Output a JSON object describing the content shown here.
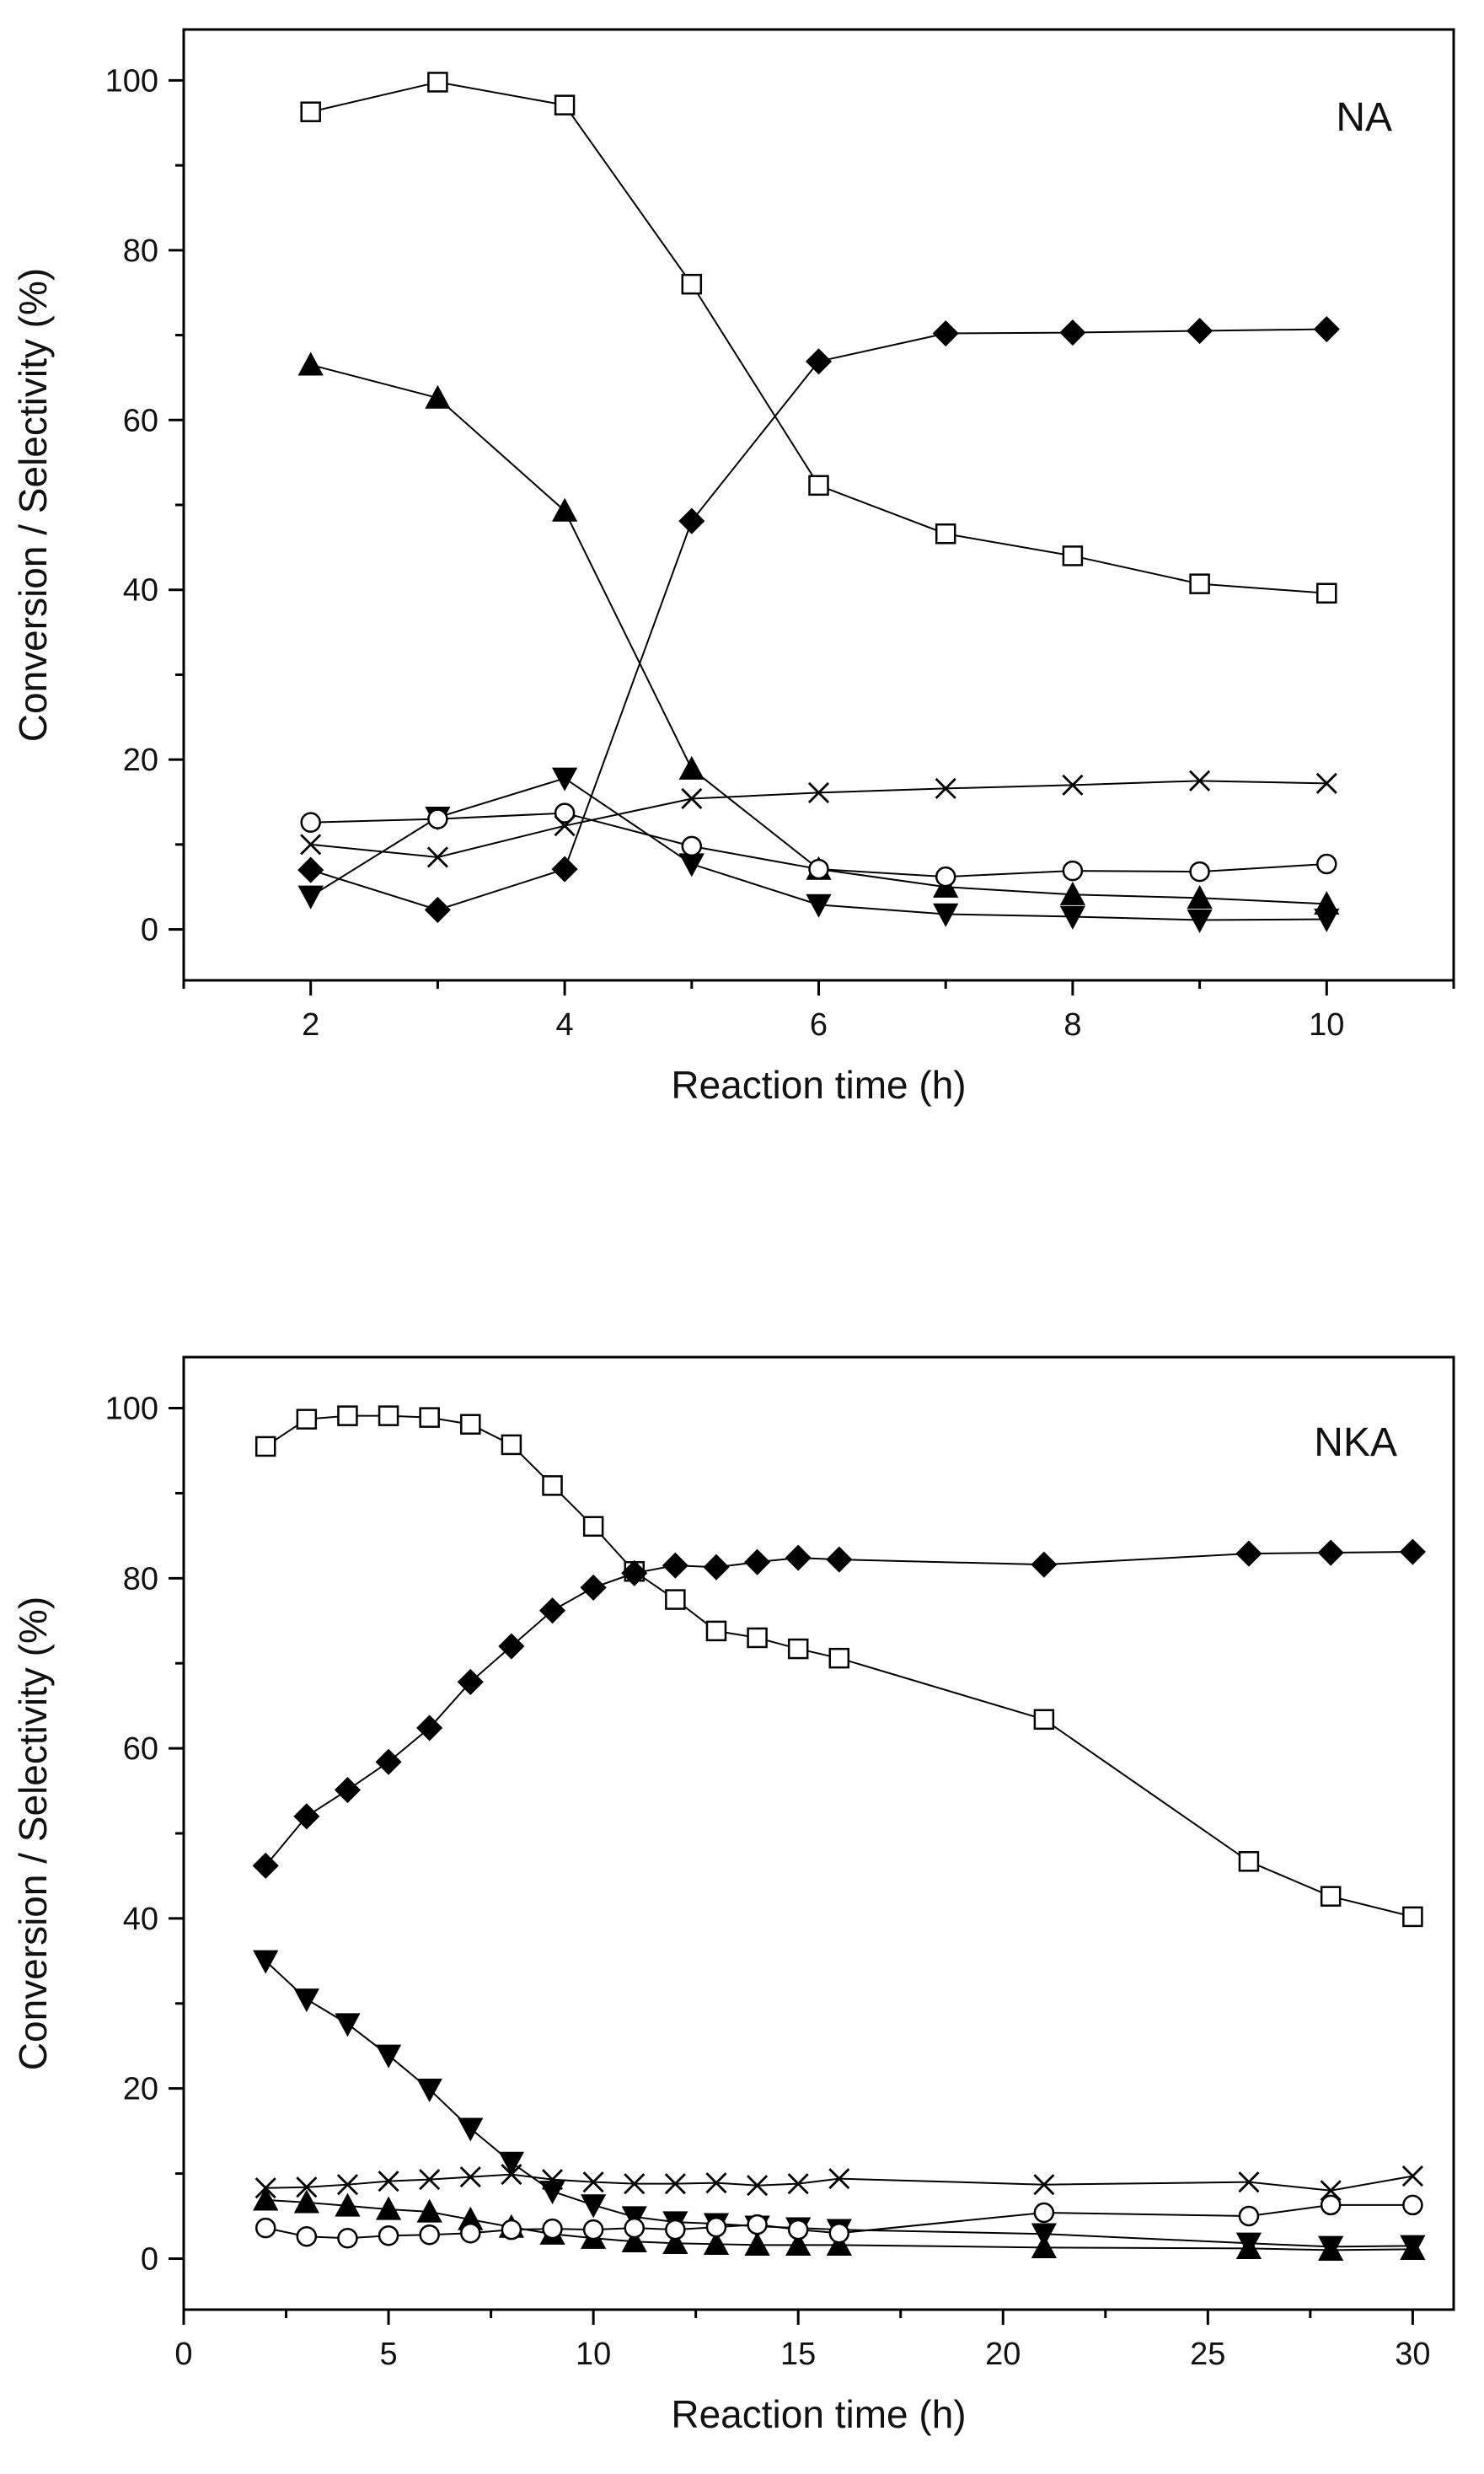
{
  "chart_data": [
    {
      "type": "line",
      "panel_label": "NA",
      "xlabel": "Reaction time (h)",
      "ylabel": "Conversion / Selectivity (%)",
      "xlim": [
        1,
        11
      ],
      "ylim": [
        -6,
        106
      ],
      "xticks": [
        2,
        4,
        6,
        8,
        10
      ],
      "yticks": [
        0,
        20,
        40,
        60,
        80,
        100
      ],
      "grid": false,
      "legend": "none",
      "series": [
        {
          "name": "open-square",
          "marker": "square-open",
          "x": [
            2,
            3,
            4,
            5,
            6,
            7,
            8,
            9,
            10
          ],
          "values": [
            96.3,
            99.8,
            97.1,
            76,
            52.3,
            46.6,
            44,
            40.7,
            39.6
          ]
        },
        {
          "name": "filled-diamond",
          "marker": "diamond-filled",
          "x": [
            2,
            3,
            4,
            5,
            6,
            7,
            8,
            9,
            10
          ],
          "values": [
            7,
            2.3,
            7.1,
            48.1,
            66.9,
            70.2,
            70.3,
            70.5,
            70.7
          ]
        },
        {
          "name": "filled-triangle-up",
          "marker": "triangle-up-filled",
          "x": [
            2,
            3,
            4,
            5,
            6,
            7,
            8,
            9,
            10
          ],
          "values": [
            66.5,
            62.6,
            49.3,
            18.9,
            7.1,
            5,
            4.1,
            3.7,
            3
          ]
        },
        {
          "name": "filled-triangle-down",
          "marker": "triangle-down-filled",
          "x": [
            2,
            3,
            4,
            5,
            6,
            7,
            8,
            9,
            10
          ],
          "values": [
            3.9,
            13.2,
            17.8,
            7.7,
            2.9,
            1.8,
            1.5,
            1.1,
            1.2
          ]
        },
        {
          "name": "open-circle",
          "marker": "circle-open",
          "x": [
            2,
            3,
            4,
            5,
            6,
            7,
            8,
            9,
            10
          ],
          "values": [
            12.6,
            13,
            13.7,
            9.8,
            7.1,
            6.2,
            6.9,
            6.8,
            7.7
          ]
        },
        {
          "name": "cross",
          "marker": "x-cross",
          "x": [
            2,
            3,
            4,
            5,
            6,
            7,
            8,
            9,
            10
          ],
          "values": [
            10,
            8.5,
            12.2,
            15.4,
            16.1,
            16.6,
            17,
            17.5,
            17.2
          ]
        }
      ]
    },
    {
      "type": "line",
      "panel_label": "NKA",
      "xlabel": "Reaction time (h)",
      "ylabel": "Conversion / Selectivity (%)",
      "xlim": [
        0,
        31
      ],
      "ylim": [
        -6,
        106
      ],
      "xticks": [
        0,
        5,
        10,
        15,
        20,
        25,
        30
      ],
      "yticks": [
        0,
        20,
        40,
        60,
        80,
        100
      ],
      "grid": false,
      "legend": "none",
      "series": [
        {
          "name": "open-square",
          "marker": "square-open",
          "x": [
            2,
            3,
            4,
            5,
            6,
            7,
            8,
            9,
            10,
            11,
            12,
            13,
            14,
            15,
            16,
            21,
            26,
            28,
            30
          ],
          "values": [
            95.5,
            98.7,
            99.1,
            99.1,
            98.9,
            98.1,
            95.7,
            90.9,
            86.1,
            80.8,
            77.5,
            73.8,
            73,
            71.7,
            70.6,
            63.4,
            46.7,
            42.6,
            40.2
          ]
        },
        {
          "name": "filled-diamond",
          "marker": "diamond-filled",
          "x": [
            2,
            3,
            4,
            5,
            6,
            7,
            8,
            9,
            10,
            11,
            12,
            13,
            14,
            15,
            16,
            21,
            26,
            28,
            30
          ],
          "values": [
            46.2,
            52,
            55.1,
            58.4,
            62.4,
            67.8,
            72,
            76.2,
            78.9,
            80.6,
            81.5,
            81.3,
            81.9,
            82.4,
            82.2,
            81.6,
            82.9,
            83,
            83.1
          ]
        },
        {
          "name": "filled-triangle-down",
          "marker": "triangle-down-filled",
          "x": [
            2,
            3,
            4,
            5,
            6,
            7,
            8,
            9,
            10,
            11,
            12,
            13,
            14,
            15,
            16,
            21,
            26,
            28,
            30
          ],
          "values": [
            35,
            30.5,
            27.6,
            23.9,
            19.9,
            15.3,
            11.3,
            7.9,
            6.3,
            4.9,
            4.3,
            4.1,
            3.8,
            3.6,
            3.4,
            2.9,
            1.8,
            1.4,
            1.5
          ]
        },
        {
          "name": "filled-triangle-up",
          "marker": "triangle-up-filled",
          "x": [
            2,
            3,
            4,
            5,
            6,
            7,
            8,
            9,
            10,
            11,
            12,
            13,
            14,
            15,
            16,
            21,
            26,
            28,
            30
          ],
          "values": [
            6.9,
            6.6,
            6.2,
            5.8,
            5.5,
            4.6,
            3.7,
            2.9,
            2.4,
            2,
            1.8,
            1.7,
            1.6,
            1.6,
            1.6,
            1.3,
            1.2,
            1,
            1.1
          ]
        },
        {
          "name": "open-circle",
          "marker": "circle-open",
          "x": [
            2,
            3,
            4,
            5,
            6,
            7,
            8,
            9,
            10,
            11,
            12,
            13,
            14,
            15,
            16,
            21,
            26,
            28,
            30
          ],
          "values": [
            3.6,
            2.6,
            2.4,
            2.7,
            2.8,
            3,
            3.4,
            3.5,
            3.4,
            3.6,
            3.4,
            3.7,
            4,
            3.4,
            3,
            5.4,
            5,
            6.3,
            6.3
          ]
        },
        {
          "name": "cross",
          "marker": "x-cross",
          "x": [
            2,
            3,
            4,
            5,
            6,
            7,
            8,
            9,
            10,
            11,
            12,
            13,
            14,
            15,
            16,
            21,
            26,
            28,
            30
          ],
          "values": [
            8.3,
            8.4,
            8.7,
            9.1,
            9.3,
            9.6,
            9.9,
            9.3,
            9,
            8.8,
            8.8,
            8.9,
            8.6,
            8.8,
            9.4,
            8.7,
            9,
            8,
            9.7
          ]
        }
      ]
    }
  ]
}
